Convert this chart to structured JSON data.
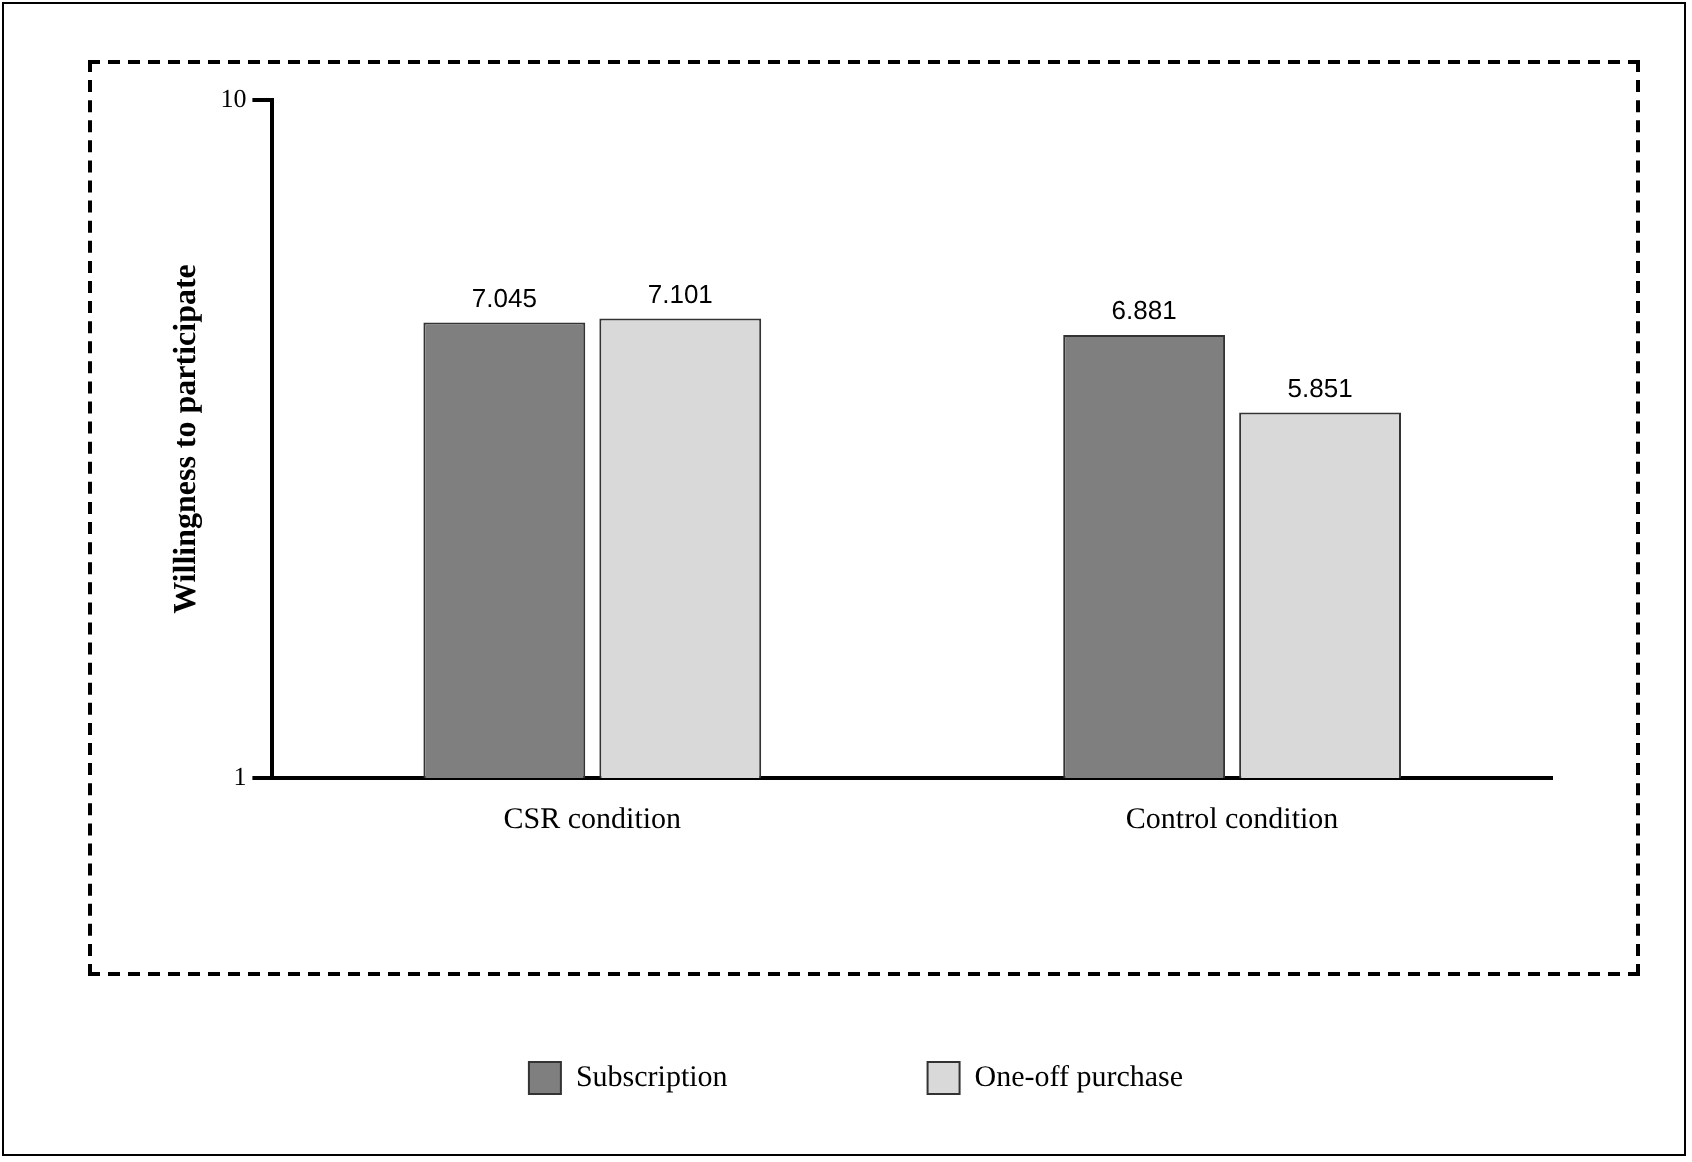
{
  "chart_data": {
    "type": "bar",
    "ylabel": "Willingness to participate",
    "categories": [
      "CSR condition",
      "Control condition"
    ],
    "series": [
      {
        "name": "Subscription",
        "color": "#7f7f7f",
        "values": [
          7.045,
          6.881
        ]
      },
      {
        "name": "One-off purchase",
        "color": "#d9d9d9",
        "values": [
          7.101,
          5.851
        ]
      }
    ],
    "ylim": [
      1,
      10
    ],
    "yticks": [
      1,
      10
    ],
    "grid": false,
    "legend": "bottom",
    "data_labels": true
  }
}
